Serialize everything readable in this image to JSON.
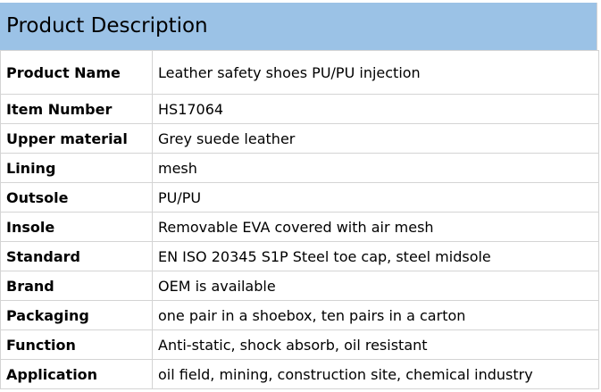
{
  "header": {
    "title": "Product Description"
  },
  "table": {
    "rows": [
      [
        "Product Name",
        "Leather safety shoes PU/PU injection"
      ],
      [
        "Item Number",
        "HS17064"
      ],
      [
        "Upper material",
        "Grey suede leather"
      ],
      [
        "Lining",
        "mesh"
      ],
      [
        "Outsole",
        "PU/PU"
      ],
      [
        "Insole",
        "Removable EVA covered with air mesh"
      ],
      [
        "Standard",
        "EN ISO 20345 S1P Steel toe cap, steel midsole"
      ],
      [
        "Brand",
        "OEM is available"
      ],
      [
        "Packaging",
        "one pair in a shoebox, ten pairs in a carton"
      ],
      [
        "Function",
        "Anti-static, shock absorb, oil resistant"
      ],
      [
        "Application",
        "oil field, mining, construction site, chemical industry"
      ]
    ]
  }
}
